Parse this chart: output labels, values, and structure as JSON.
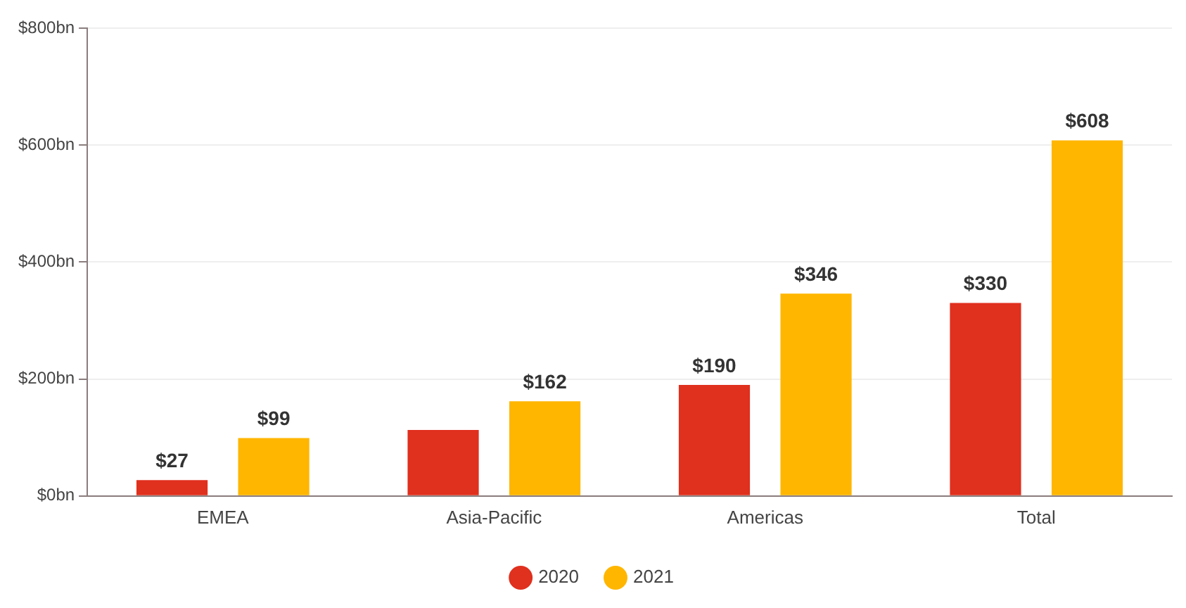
{
  "chart_data": {
    "type": "bar",
    "categories": [
      "EMEA",
      "Asia-Pacific",
      "Americas",
      "Total"
    ],
    "series": [
      {
        "name": "2020",
        "color": "#e0301e",
        "values": [
          27,
          113,
          190,
          330
        ],
        "value_labels": [
          "$27",
          null,
          "$190",
          "$330"
        ]
      },
      {
        "name": "2021",
        "color": "#ffb600",
        "values": [
          99,
          162,
          346,
          608
        ],
        "value_labels": [
          "$99",
          "$162",
          "$346",
          "$608"
        ]
      }
    ],
    "ylim": [
      0,
      800
    ],
    "yticks": [
      {
        "value": 0,
        "label": "$0bn"
      },
      {
        "value": 200,
        "label": "$200bn"
      },
      {
        "value": 400,
        "label": "$400bn"
      },
      {
        "value": 600,
        "label": "$600bn"
      },
      {
        "value": 800,
        "label": "$800bn"
      }
    ],
    "grid": "y",
    "legend": "bottom",
    "marker": "circle"
  }
}
